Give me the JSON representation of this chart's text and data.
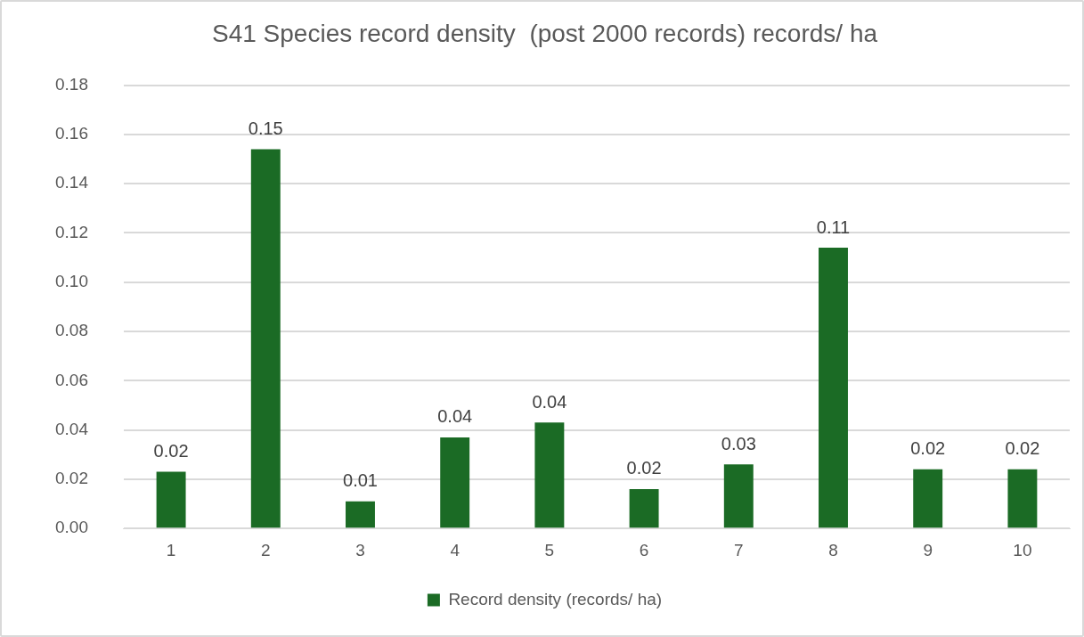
{
  "chart_data": {
    "type": "bar",
    "title": "S41 Species record density  (post 2000 records) records/ ha",
    "categories": [
      "1",
      "2",
      "3",
      "4",
      "5",
      "6",
      "7",
      "8",
      "9",
      "10"
    ],
    "series": [
      {
        "name": "Record density (records/ ha)",
        "color": "#1b6b25",
        "values": [
          0.023,
          0.154,
          0.011,
          0.037,
          0.043,
          0.016,
          0.026,
          0.114,
          0.024,
          0.024
        ],
        "value_labels": [
          "0.02",
          "0.15",
          "0.01",
          "0.04",
          "0.04",
          "0.02",
          "0.03",
          "0.11",
          "0.02",
          "0.02"
        ]
      }
    ],
    "ylim": [
      0,
      0.18
    ],
    "yticks": [
      {
        "value": 0,
        "label": "0.00"
      },
      0.02,
      0.04,
      0.06,
      0.08,
      {
        "value": 0.1,
        "label": "0.10"
      },
      0.12,
      0.14,
      0.16,
      0.18
    ],
    "grid": "y",
    "legend": "bottom"
  }
}
